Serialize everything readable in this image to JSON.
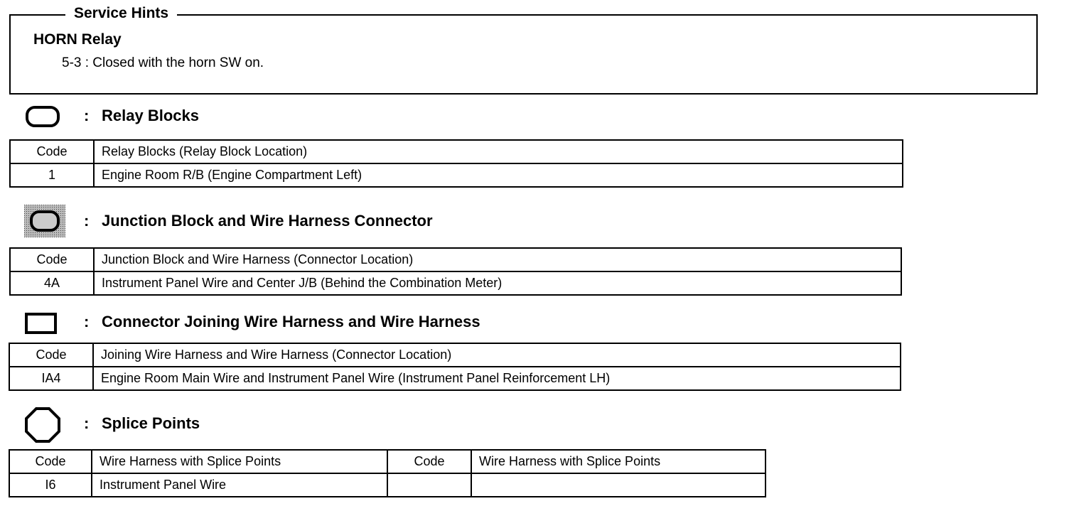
{
  "service_hints": {
    "title": "Service Hints",
    "heading": "HORN Relay",
    "lines": [
      "5-3 : Closed with the horn SW on."
    ]
  },
  "sections": [
    {
      "icon": "rounded-rectangle-icon",
      "colon": ":",
      "title": "Relay Blocks",
      "headers": [
        "Code",
        "Relay Blocks (Relay Block Location)"
      ],
      "rows": [
        [
          "1",
          "Engine Room R/B (Engine Compartment Left)"
        ]
      ]
    },
    {
      "icon": "shaded-rounded-rectangle-icon",
      "colon": ":",
      "title": "Junction Block and Wire Harness Connector",
      "headers": [
        "Code",
        "Junction Block and Wire Harness (Connector Location)"
      ],
      "rows": [
        [
          "4A",
          "Instrument Panel Wire and Center J/B (Behind the Combination Meter)"
        ]
      ]
    },
    {
      "icon": "rectangle-icon",
      "colon": ":",
      "title": "Connector Joining Wire Harness and Wire Harness",
      "headers": [
        "Code",
        "Joining Wire Harness and Wire Harness (Connector Location)"
      ],
      "rows": [
        [
          "IA4",
          "Engine Room Main Wire and Instrument Panel Wire (Instrument Panel Reinforcement LH)"
        ]
      ]
    },
    {
      "icon": "octagon-icon",
      "colon": ":",
      "title": "Splice Points",
      "headers": [
        "Code",
        "Wire Harness with Splice Points",
        "Code",
        "Wire Harness with Splice Points"
      ],
      "rows": [
        [
          "I6",
          "Instrument Panel Wire",
          "",
          ""
        ]
      ]
    }
  ]
}
